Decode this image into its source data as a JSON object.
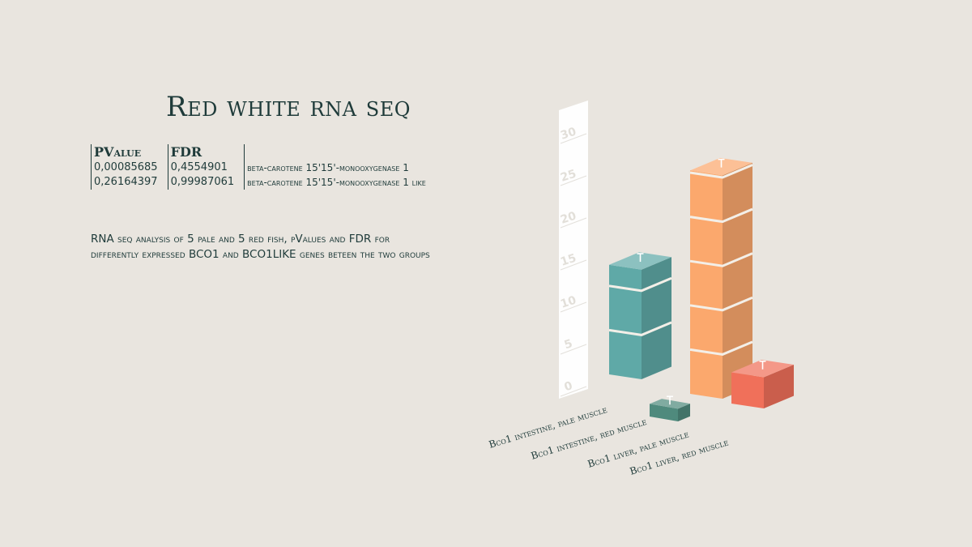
{
  "title": "Red white rna seq",
  "table": {
    "headers": [
      "PValue",
      "FDR"
    ],
    "rows": [
      {
        "pvalue": "0,00085685",
        "fdr": "0,4554901",
        "gene": "beta-carotene 15'15'-monooxygenase 1"
      },
      {
        "pvalue": "0,26164397",
        "fdr": "0,99987061",
        "gene": "beta-carotene 15'15'-monooxygenase 1 like"
      }
    ]
  },
  "caption": "RNA seq analysis of 5 pale and 5 red fish, pValues and FDR for differently expressed BCO1 and BCO1LIKE genes beteen the two groups",
  "chart_data": {
    "type": "bar",
    "style": "isometric-3d",
    "categories": [
      "Bco1 intestine, pale muscle",
      "Bco1 intestine, red muscle",
      "Bco1 liver, pale muscle",
      "Bco1 liver, red muscle"
    ],
    "values": [
      13,
      1.5,
      26.5,
      3.7
    ],
    "colors": [
      "#5fa9a7",
      "#4f8a7d",
      "#fba86d",
      "#f0705a"
    ],
    "y_ticks": [
      0,
      5,
      10,
      15,
      20,
      25,
      30
    ],
    "ylim": [
      0,
      30
    ],
    "error_bars": true,
    "legend": "none",
    "grid": false
  }
}
